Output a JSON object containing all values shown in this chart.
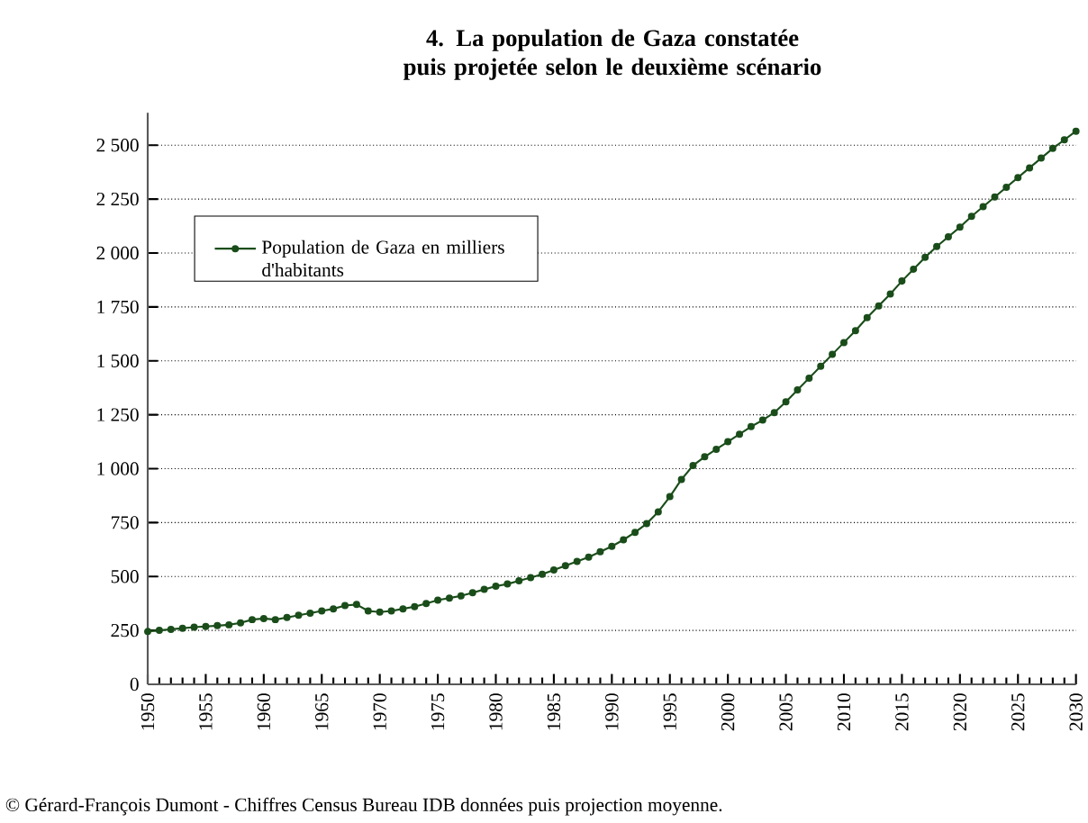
{
  "chart_data": {
    "type": "line",
    "title": "4. La population de Gaza constatée puis projetée selon le deuxième scénario",
    "x": [
      1950,
      1951,
      1952,
      1953,
      1954,
      1955,
      1956,
      1957,
      1958,
      1959,
      1960,
      1961,
      1962,
      1963,
      1964,
      1965,
      1966,
      1967,
      1968,
      1969,
      1970,
      1971,
      1972,
      1973,
      1974,
      1975,
      1976,
      1977,
      1978,
      1979,
      1980,
      1981,
      1982,
      1983,
      1984,
      1985,
      1986,
      1987,
      1988,
      1989,
      1990,
      1991,
      1992,
      1993,
      1994,
      1995,
      1996,
      1997,
      1998,
      1999,
      2000,
      2001,
      2002,
      2003,
      2004,
      2005,
      2006,
      2007,
      2008,
      2009,
      2010,
      2011,
      2012,
      2013,
      2014,
      2015,
      2016,
      2017,
      2018,
      2019,
      2020,
      2021,
      2022,
      2023,
      2024,
      2025,
      2026,
      2027,
      2028,
      2029,
      2030
    ],
    "series": [
      {
        "name": "Population de Gaza en milliers d'habitants",
        "color": "#1a4d1a",
        "values": [
          245,
          250,
          255,
          260,
          265,
          268,
          272,
          276,
          285,
          300,
          305,
          300,
          310,
          320,
          330,
          340,
          350,
          365,
          370,
          340,
          335,
          340,
          350,
          360,
          375,
          390,
          400,
          410,
          425,
          440,
          455,
          465,
          480,
          495,
          510,
          530,
          550,
          570,
          590,
          615,
          640,
          670,
          705,
          745,
          800,
          870,
          950,
          1015,
          1055,
          1090,
          1125,
          1160,
          1195,
          1225,
          1260,
          1310,
          1365,
          1420,
          1475,
          1530,
          1585,
          1640,
          1700,
          1755,
          1810,
          1870,
          1925,
          1980,
          2030,
          2075,
          2120,
          2170,
          2215,
          2260,
          2305,
          2350,
          2395,
          2440,
          2485,
          2525,
          2565
        ]
      }
    ],
    "xlim": [
      1950,
      2030
    ],
    "xticks": [
      1950,
      1955,
      1960,
      1965,
      1970,
      1975,
      1980,
      1985,
      1990,
      1995,
      2000,
      2005,
      2010,
      2015,
      2020,
      2025,
      2030
    ],
    "ylim": [
      0,
      2650
    ],
    "yticks": [
      {
        "value": 0,
        "label": "0"
      },
      {
        "value": 250,
        "label": "250"
      },
      {
        "value": 500,
        "label": "500"
      },
      {
        "value": 750,
        "label": "750"
      },
      {
        "value": 1000,
        "label": "1 000"
      },
      {
        "value": 1250,
        "label": "1 250"
      },
      {
        "value": 1500,
        "label": "1 500"
      },
      {
        "value": 1750,
        "label": "1 750"
      },
      {
        "value": 2000,
        "label": "2 000"
      },
      {
        "value": 2250,
        "label": "2 250"
      },
      {
        "value": 2500,
        "label": "2 500"
      }
    ],
    "grid": "y",
    "legend": "top left",
    "marker": "circle",
    "line_style": "solid",
    "annotations": [
      "© Gérard-François Dumont - Chiffres Census Bureau IDB données puis projection moyenne."
    ]
  }
}
